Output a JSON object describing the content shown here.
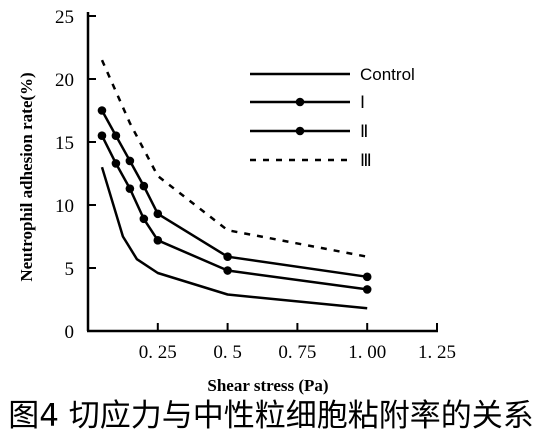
{
  "chart_data": {
    "type": "line",
    "xlabel": "Shear stress (Pa)",
    "ylabel": "Neutrophil adhesion rate(%)",
    "xlim": [
      0,
      1.25
    ],
    "ylim": [
      0,
      25
    ],
    "x_ticks": [
      {
        "value": 0.25,
        "label": "0. 25"
      },
      {
        "value": 0.5,
        "label": "0. 5"
      },
      {
        "value": 0.75,
        "label": "0. 75"
      },
      {
        "value": 1.0,
        "label": "1. 00"
      },
      {
        "value": 1.25,
        "label": "1. 25"
      }
    ],
    "y_ticks": [
      {
        "value": 0,
        "label": "0"
      },
      {
        "value": 5,
        "label": "5"
      },
      {
        "value": 10,
        "label": "10"
      },
      {
        "value": 15,
        "label": "15"
      },
      {
        "value": 20,
        "label": "20"
      },
      {
        "value": 25,
        "label": "25"
      }
    ],
    "grid": false,
    "legend_position": "top-right",
    "series": [
      {
        "name": "Control",
        "style": "solid",
        "markers": false,
        "x": [
          0.05,
          0.125,
          0.175,
          0.25,
          0.5,
          1.0
        ],
        "y": [
          13.0,
          7.5,
          5.7,
          4.6,
          2.9,
          1.8
        ]
      },
      {
        "name": "Ⅰ",
        "style": "solid",
        "markers": true,
        "x": [
          0.05,
          0.1,
          0.15,
          0.2,
          0.25,
          0.5,
          1.0
        ],
        "y": [
          15.5,
          13.3,
          11.3,
          8.9,
          7.2,
          4.8,
          3.3
        ]
      },
      {
        "name": "Ⅱ",
        "style": "solid",
        "markers": true,
        "x": [
          0.05,
          0.1,
          0.15,
          0.2,
          0.25,
          0.5,
          1.0
        ],
        "y": [
          17.5,
          15.5,
          13.5,
          11.5,
          9.3,
          5.9,
          4.3
        ]
      },
      {
        "name": "Ⅲ",
        "style": "dashed",
        "markers": false,
        "x": [
          0.05,
          0.15,
          0.25,
          0.5,
          1.0
        ],
        "y": [
          21.5,
          16.5,
          12.3,
          8.0,
          5.9
        ]
      }
    ]
  },
  "caption": "图4 切应力与中性粒细胞粘附率的关系"
}
